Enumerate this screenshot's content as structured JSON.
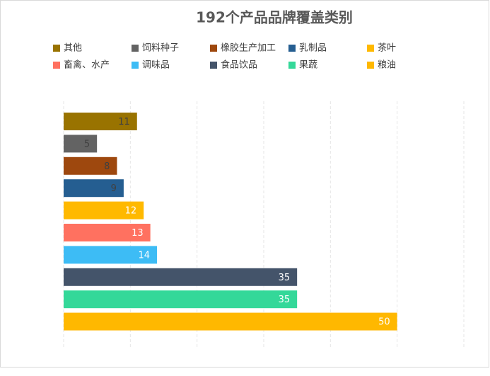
{
  "chart_data": {
    "type": "bar",
    "orientation": "horizontal",
    "title": "192个产品品牌覆盖类别",
    "categories": [
      "其他",
      "饲料种子",
      "橡胶生产加工",
      "乳制品",
      "茶叶",
      "畜禽、水产",
      "调味品",
      "食品饮品",
      "果蔬",
      "粮油"
    ],
    "values": [
      11,
      5,
      8,
      9,
      12,
      13,
      14,
      35,
      35,
      50
    ],
    "colors": [
      "#997300",
      "#636363",
      "#9e480e",
      "#255e91",
      "#ffb900",
      "#ff7160",
      "#3dbcf5",
      "#44546a",
      "#34d899",
      "#ffb800"
    ],
    "xlim": [
      0,
      60
    ],
    "xticks": [
      0,
      10,
      20,
      30,
      40,
      50,
      60
    ],
    "grid": true
  }
}
